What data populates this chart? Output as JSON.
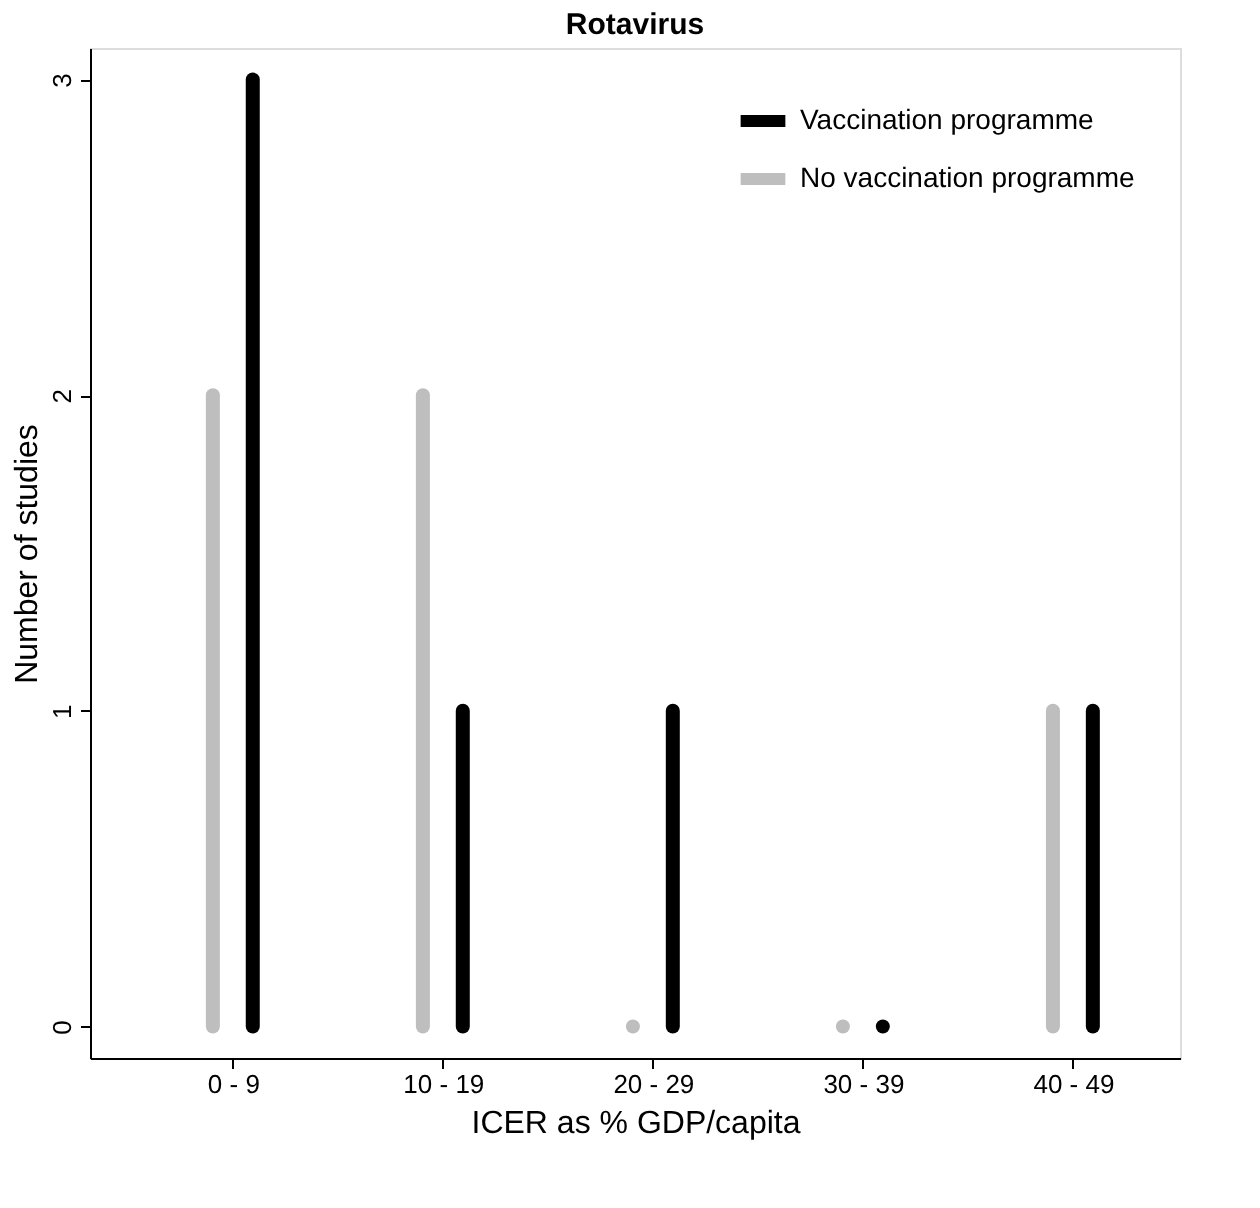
{
  "chart_data": {
    "type": "bar",
    "title": "Rotavirus",
    "xlabel": "ICER as % GDP/capita",
    "ylabel": "Number of studies",
    "categories": [
      "0 - 9",
      "10 - 19",
      "20 - 29",
      "30 - 39",
      "40 - 49"
    ],
    "series": [
      {
        "name": "Vaccination programme",
        "color": "#000000",
        "values": [
          3,
          1,
          1,
          0,
          1
        ]
      },
      {
        "name": "No vaccination programme",
        "color": "#bebebe",
        "values": [
          2,
          2,
          0,
          0,
          1
        ]
      }
    ],
    "ylim": [
      -0.1,
      3.1
    ],
    "yticks": [
      0,
      1,
      2,
      3
    ],
    "grid": false,
    "legend": "top right"
  }
}
